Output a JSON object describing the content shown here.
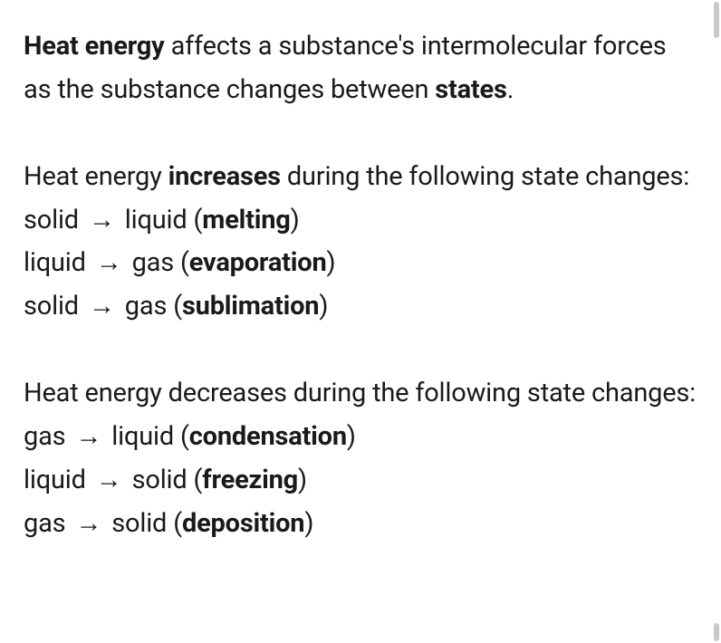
{
  "intro": {
    "bold1": "Heat energy",
    "text1": " affects a substance's intermolecular forces as the substance changes between ",
    "bold2": "states",
    "text2": "."
  },
  "increases": {
    "lead_pre": "Heat energy ",
    "lead_bold": "increases",
    "lead_post": " during the following state changes:",
    "items": [
      {
        "from": "solid",
        "to": "liquid",
        "term": "melting"
      },
      {
        "from": "liquid",
        "to": "gas",
        "term": "evaporation"
      },
      {
        "from": "solid",
        "to": "gas",
        "term": "sublimation"
      }
    ]
  },
  "decreases": {
    "lead": "Heat energy decreases during the following state changes:",
    "items": [
      {
        "from": "gas",
        "to": "liquid",
        "term": "condensation"
      },
      {
        "from": "liquid",
        "to": "solid",
        "term": "freezing"
      },
      {
        "from": "gas",
        "to": "solid",
        "term": "deposition"
      }
    ]
  },
  "arrow": "→"
}
